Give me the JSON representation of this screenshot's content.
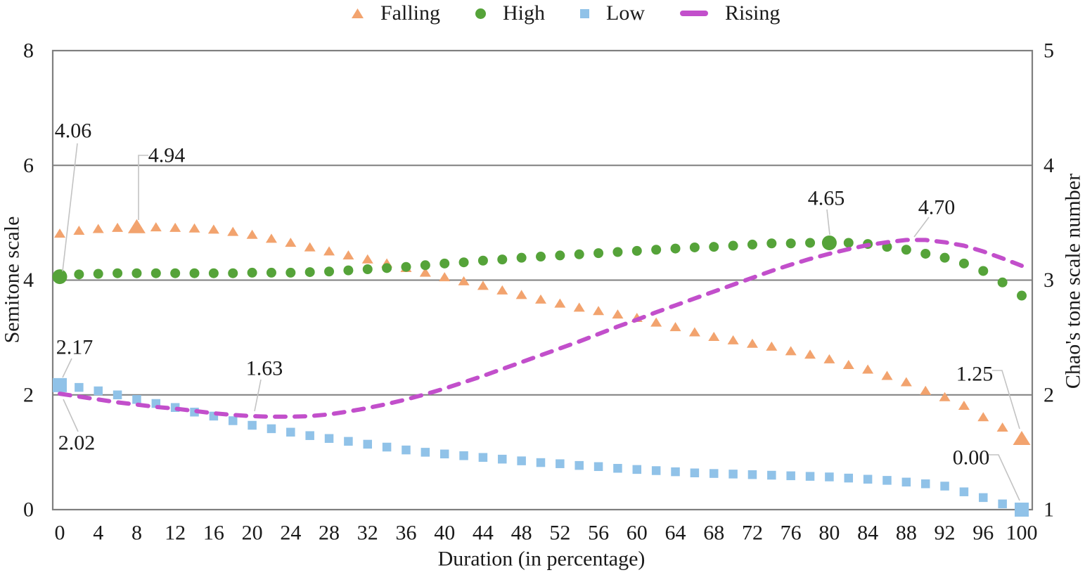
{
  "chart_data": {
    "type": "scatter",
    "title": "",
    "xlabel": "Duration (in percentage)",
    "ylabel_left": "Semitone scale",
    "ylabel_right": "Chao's tone scale number",
    "x_axis": {
      "min": 0,
      "max": 100,
      "tick_labels": [
        "0",
        "4",
        "8",
        "12",
        "16",
        "20",
        "24",
        "28",
        "32",
        "36",
        "40",
        "44",
        "48",
        "52",
        "56",
        "60",
        "64",
        "68",
        "72",
        "76",
        "80",
        "84",
        "88",
        "92",
        "96",
        "100"
      ],
      "tick_values": [
        0,
        4,
        8,
        12,
        16,
        20,
        24,
        28,
        32,
        36,
        40,
        44,
        48,
        52,
        56,
        60,
        64,
        68,
        72,
        76,
        80,
        84,
        88,
        92,
        96,
        100
      ]
    },
    "y_left_axis": {
      "min": 0,
      "max": 8,
      "tick_labels": [
        "0",
        "2",
        "4",
        "6",
        "8"
      ],
      "tick_values": [
        0,
        2,
        4,
        6,
        8
      ]
    },
    "y_right_axis": {
      "min": 1,
      "max": 5,
      "tick_labels": [
        "1",
        "2",
        "3",
        "4",
        "5"
      ],
      "tick_values": [
        1,
        2,
        3,
        4,
        5
      ]
    },
    "grid": {
      "horizontal_gridlines_at_left_values": [
        2,
        4,
        6
      ],
      "border": true
    },
    "legend": {
      "position": "top",
      "items": [
        "Falling",
        "High",
        "Low",
        "Rising"
      ]
    },
    "x": [
      0,
      2,
      4,
      6,
      8,
      10,
      12,
      14,
      16,
      18,
      20,
      22,
      24,
      26,
      28,
      30,
      32,
      34,
      36,
      38,
      40,
      42,
      44,
      46,
      48,
      50,
      52,
      54,
      56,
      58,
      60,
      62,
      64,
      66,
      68,
      70,
      72,
      74,
      76,
      78,
      80,
      82,
      84,
      86,
      88,
      90,
      92,
      94,
      96,
      98,
      100
    ],
    "series": [
      {
        "name": "Falling",
        "marker": "triangle",
        "color": "#F2A36E",
        "values": [
          4.82,
          4.87,
          4.9,
          4.92,
          4.94,
          4.93,
          4.92,
          4.91,
          4.89,
          4.85,
          4.8,
          4.73,
          4.66,
          4.58,
          4.51,
          4.44,
          4.37,
          4.3,
          4.22,
          4.14,
          4.06,
          3.99,
          3.91,
          3.83,
          3.75,
          3.67,
          3.6,
          3.53,
          3.47,
          3.41,
          3.35,
          3.27,
          3.19,
          3.1,
          3.02,
          2.96,
          2.9,
          2.85,
          2.77,
          2.71,
          2.63,
          2.53,
          2.45,
          2.34,
          2.23,
          2.08,
          1.97,
          1.82,
          1.62,
          1.44,
          1.25
        ],
        "emphasized_x": [
          8,
          100
        ]
      },
      {
        "name": "High",
        "marker": "circle",
        "color": "#55A339",
        "values": [
          4.06,
          4.1,
          4.11,
          4.12,
          4.12,
          4.12,
          4.12,
          4.12,
          4.12,
          4.12,
          4.13,
          4.13,
          4.13,
          4.14,
          4.15,
          4.17,
          4.19,
          4.21,
          4.23,
          4.26,
          4.29,
          4.31,
          4.34,
          4.36,
          4.39,
          4.41,
          4.43,
          4.45,
          4.47,
          4.49,
          4.51,
          4.53,
          4.55,
          4.57,
          4.58,
          4.6,
          4.62,
          4.64,
          4.64,
          4.65,
          4.65,
          4.65,
          4.63,
          4.58,
          4.53,
          4.46,
          4.39,
          4.29,
          4.16,
          3.96,
          3.73
        ],
        "emphasized_x": [
          0,
          80
        ]
      },
      {
        "name": "Low",
        "marker": "square",
        "color": "#90C2E8",
        "values": [
          2.17,
          2.13,
          2.07,
          2.0,
          1.92,
          1.85,
          1.78,
          1.7,
          1.63,
          1.55,
          1.47,
          1.41,
          1.35,
          1.29,
          1.24,
          1.19,
          1.14,
          1.09,
          1.04,
          1.0,
          0.97,
          0.94,
          0.91,
          0.88,
          0.85,
          0.82,
          0.8,
          0.77,
          0.75,
          0.72,
          0.7,
          0.68,
          0.66,
          0.64,
          0.63,
          0.62,
          0.61,
          0.6,
          0.59,
          0.58,
          0.57,
          0.55,
          0.53,
          0.51,
          0.48,
          0.45,
          0.41,
          0.31,
          0.21,
          0.1,
          0.0
        ],
        "emphasized_x": [
          0,
          100
        ]
      },
      {
        "name": "Rising",
        "marker": "dash-line",
        "color": "#C24FCB",
        "values": [
          2.02,
          1.97,
          1.92,
          1.87,
          1.83,
          1.79,
          1.76,
          1.72,
          1.68,
          1.65,
          1.63,
          1.62,
          1.62,
          1.63,
          1.66,
          1.71,
          1.77,
          1.84,
          1.92,
          2.01,
          2.11,
          2.22,
          2.33,
          2.45,
          2.57,
          2.69,
          2.81,
          2.93,
          3.06,
          3.19,
          3.31,
          3.44,
          3.56,
          3.68,
          3.8,
          3.92,
          4.04,
          4.16,
          4.27,
          4.37,
          4.46,
          4.54,
          4.61,
          4.66,
          4.7,
          4.7,
          4.66,
          4.6,
          4.5,
          4.38,
          4.25
        ],
        "emphasized_x": []
      }
    ],
    "annotations": [
      {
        "label": "4.06",
        "series": "High",
        "x": 0,
        "value": 4.06
      },
      {
        "label": "4.94",
        "series": "Falling",
        "x": 8,
        "value": 4.94
      },
      {
        "label": "2.17",
        "series": "Low",
        "x": 0,
        "value": 2.17
      },
      {
        "label": "2.02",
        "series": "Rising",
        "x": 0,
        "value": 2.02
      },
      {
        "label": "1.63",
        "series": "Rising",
        "x": 20,
        "value": 1.63
      },
      {
        "label": "4.65",
        "series": "High",
        "x": 80,
        "value": 4.65
      },
      {
        "label": "4.70",
        "series": "Rising",
        "x": 88,
        "value": 4.7
      },
      {
        "label": "1.25",
        "series": "Falling",
        "x": 100,
        "value": 1.25
      },
      {
        "label": "0.00",
        "series": "Low",
        "x": 100,
        "value": 0.0
      }
    ],
    "style_colors": {
      "gridline": "#7f7f7f",
      "frame": "#7f7f7f",
      "leader_line": "#c3c3c3",
      "text": "#1a1a1a"
    }
  }
}
